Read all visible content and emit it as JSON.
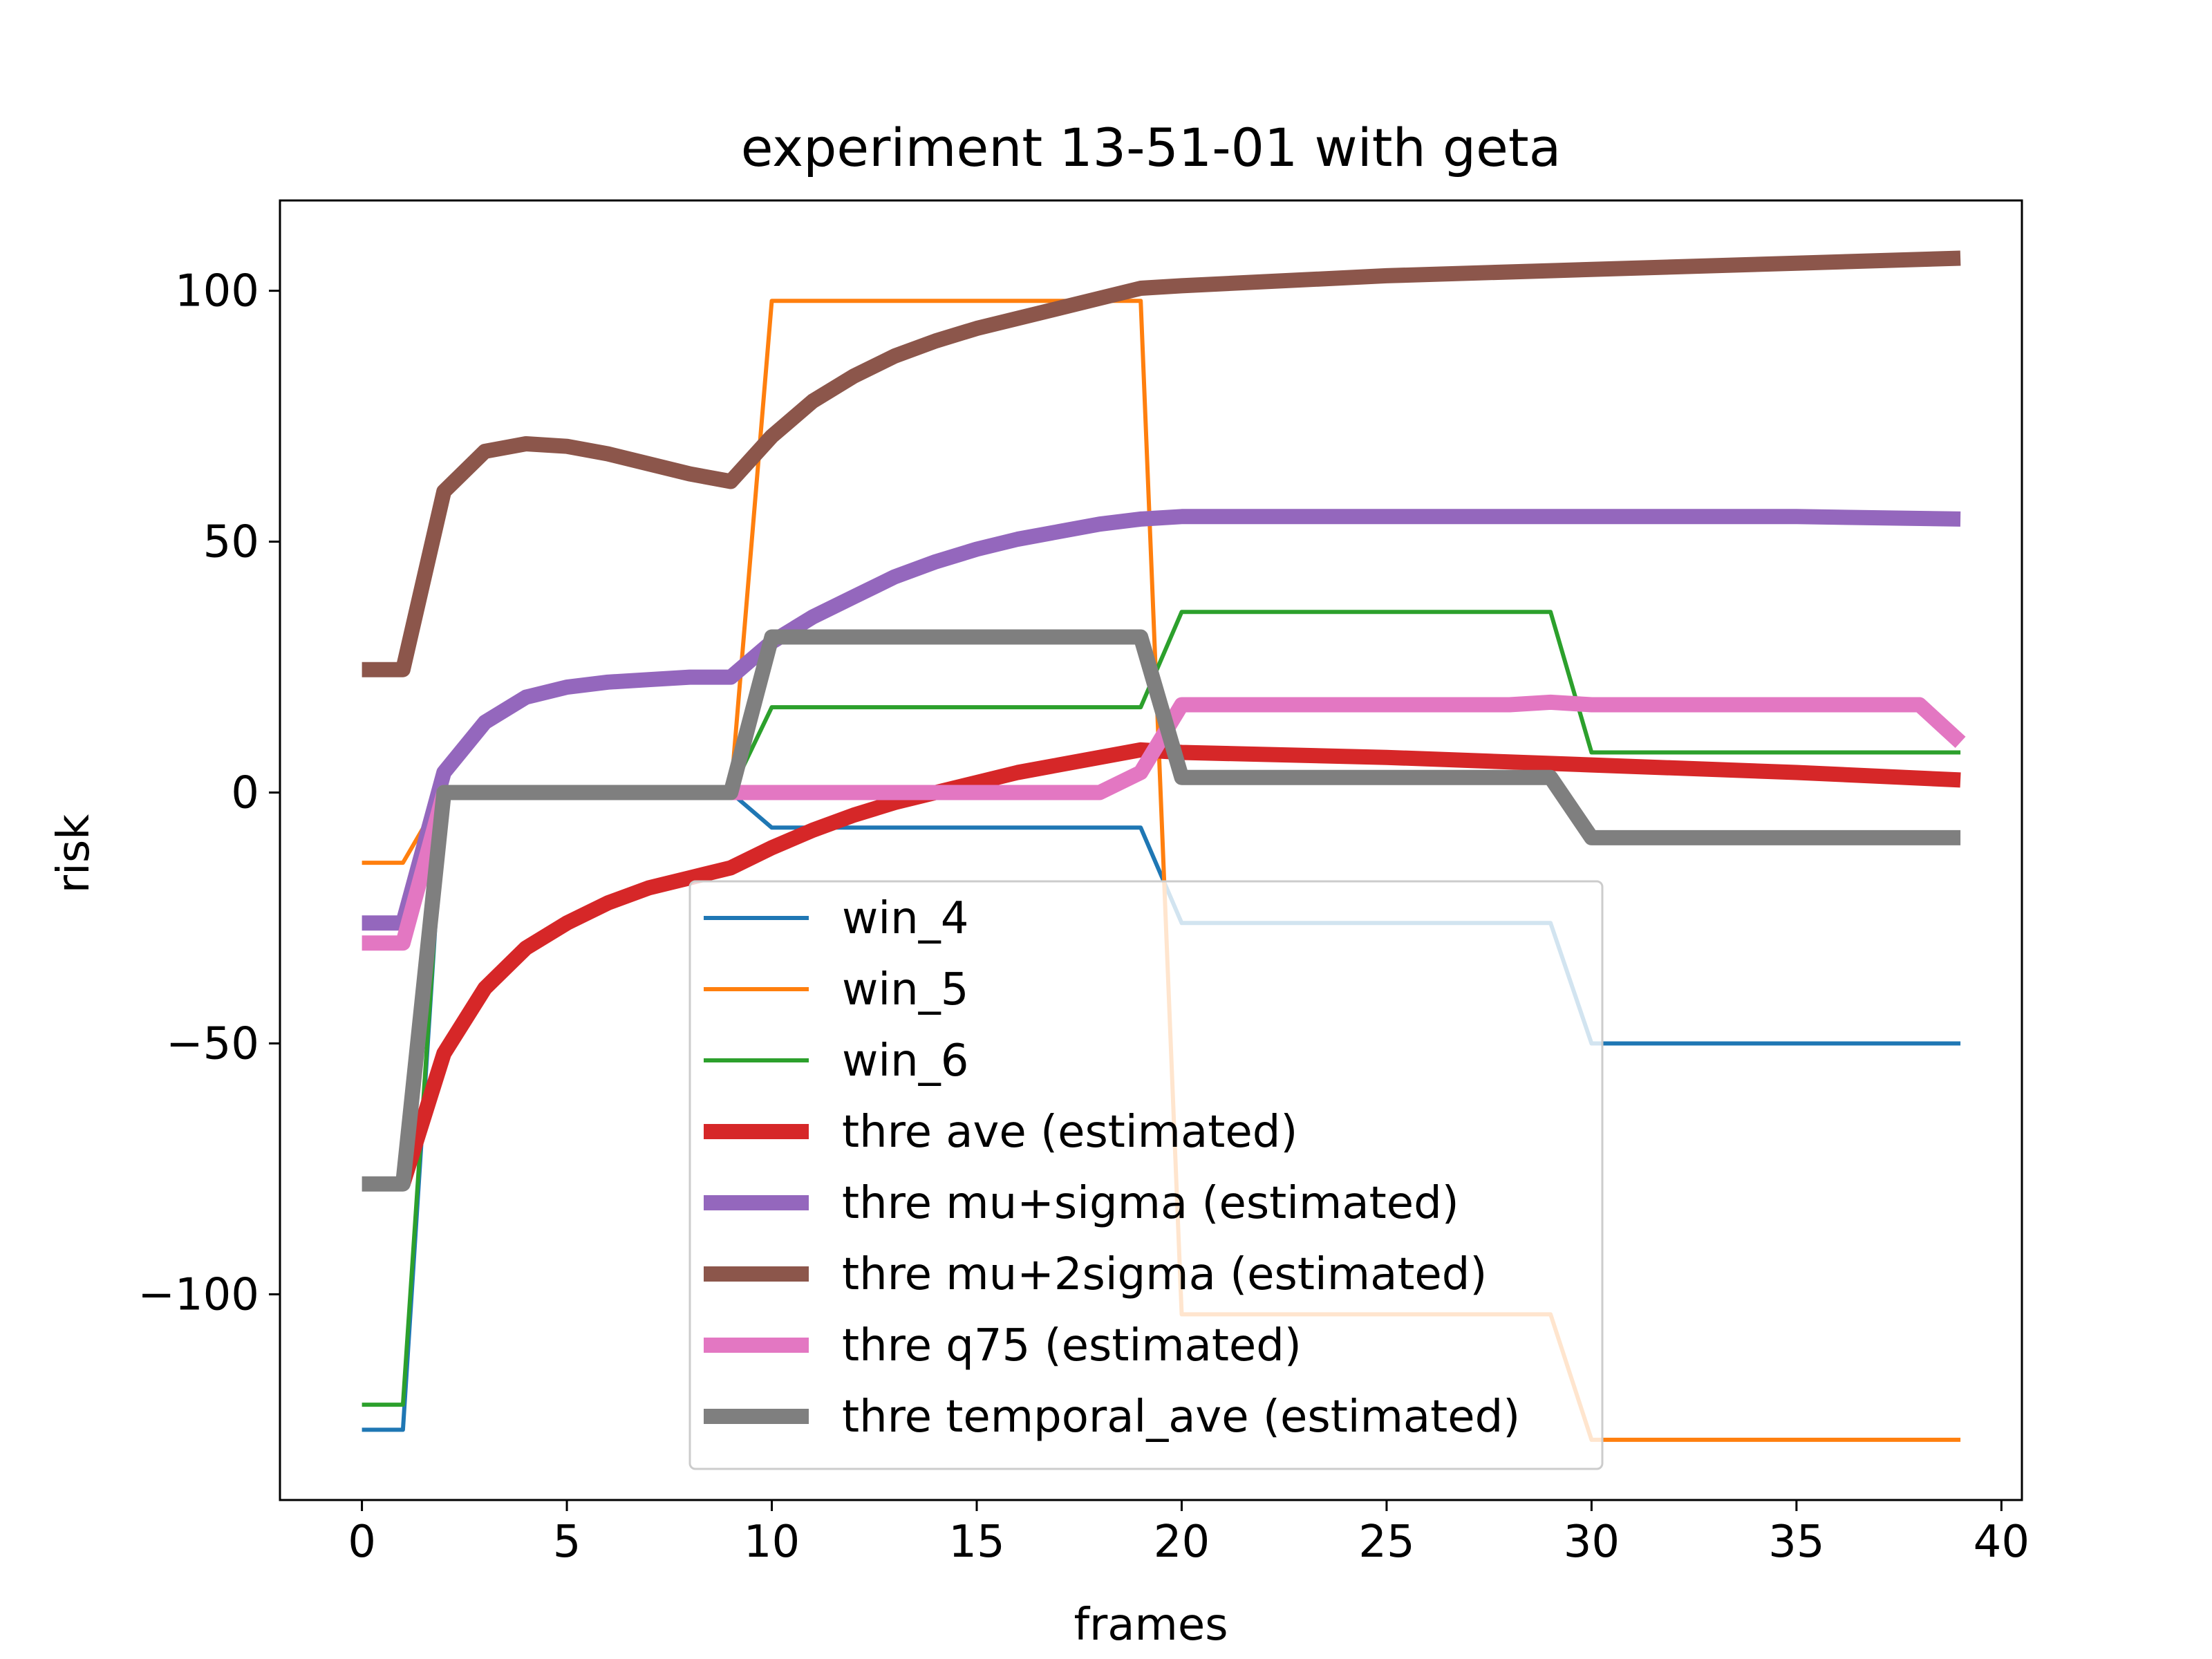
{
  "chart_data": {
    "type": "line",
    "title": "experiment 13-51-01 with geta",
    "xlabel": "frames",
    "ylabel": "risk",
    "xlim": [
      -2,
      40.5
    ],
    "ylim": [
      -141,
      118
    ],
    "xticks": [
      0,
      5,
      10,
      15,
      20,
      25,
      30,
      35,
      40
    ],
    "yticks": [
      100,
      50,
      0,
      -50,
      -100
    ],
    "ytick_labels": [
      "100",
      "50",
      "0",
      "−50",
      "−100"
    ],
    "grid": false,
    "legend_position": "lower center",
    "series": [
      {
        "name": "win_4",
        "color": "#1f77b4",
        "style": "thin",
        "x": [
          0,
          1,
          2,
          9,
          10,
          19,
          20,
          29,
          30,
          39
        ],
        "y": [
          -127,
          -127,
          0,
          0,
          -7,
          -7,
          -26,
          -26,
          -50,
          -50
        ]
      },
      {
        "name": "win_5",
        "color": "#ff7f0e",
        "style": "thin",
        "x": [
          0,
          1,
          2,
          9,
          10,
          19,
          20,
          29,
          30,
          39
        ],
        "y": [
          -14,
          -14,
          0,
          0,
          98,
          98,
          -104,
          -104,
          -129,
          -129
        ]
      },
      {
        "name": "win_6",
        "color": "#2ca02c",
        "style": "thin",
        "x": [
          0,
          1,
          2,
          9,
          10,
          19,
          20,
          29,
          30,
          39
        ],
        "y": [
          -122,
          -122,
          0,
          0,
          17,
          17,
          36,
          36,
          8,
          8
        ]
      },
      {
        "name": "thre ave (estimated)",
        "color": "#d62728",
        "style": "thick",
        "x": [
          1,
          2,
          3,
          4,
          5,
          6,
          7,
          8,
          9,
          10,
          11,
          12,
          13,
          14,
          15,
          16,
          17,
          18,
          19,
          20,
          25,
          30,
          35,
          39
        ],
        "y": [
          -78,
          -52,
          -39,
          -31,
          -26,
          -22,
          -19,
          -17,
          -15,
          -11,
          -7.5,
          -4.5,
          -2,
          0,
          2,
          4,
          5.5,
          7,
          8.5,
          8,
          7,
          5.5,
          4,
          2.5
        ]
      },
      {
        "name": "thre mu+sigma (estimated)",
        "color": "#9467bd",
        "style": "thick",
        "x": [
          0,
          1,
          2,
          3,
          4,
          5,
          6,
          7,
          8,
          9,
          10,
          11,
          12,
          13,
          14,
          15,
          16,
          17,
          18,
          19,
          20,
          25,
          29,
          35,
          39
        ],
        "y": [
          -26,
          -26,
          4,
          14,
          19,
          21,
          22,
          22.5,
          23,
          23,
          30,
          35,
          39,
          43,
          46,
          48.5,
          50.5,
          52,
          53.5,
          54.5,
          55,
          55,
          55,
          55,
          54.5
        ]
      },
      {
        "name": "thre mu+2sigma (estimated)",
        "color": "#8c564b",
        "style": "thick",
        "x": [
          0,
          1,
          2,
          3,
          4,
          5,
          6,
          7,
          8,
          9,
          10,
          11,
          12,
          13,
          14,
          15,
          16,
          17,
          18,
          19,
          20,
          25,
          29,
          35,
          39
        ],
        "y": [
          24.5,
          24.5,
          60,
          68,
          69.5,
          69,
          67.5,
          65.5,
          63.5,
          62,
          71,
          78,
          83,
          87,
          90,
          92.5,
          94.5,
          96.5,
          98.5,
          100.5,
          101,
          103,
          104,
          105.5,
          106.5
        ]
      },
      {
        "name": "thre q75 (estimated)",
        "color": "#e377c2",
        "style": "thick",
        "x": [
          0,
          1,
          2,
          9,
          18,
          19,
          20,
          28,
          29,
          30,
          38,
          39
        ],
        "y": [
          -30,
          -30,
          0,
          0,
          0,
          4,
          17.5,
          17.5,
          18,
          17.5,
          17.5,
          10
        ]
      },
      {
        "name": "thre temporal_ave (estimated)",
        "color": "#7f7f7f",
        "style": "thick",
        "x": [
          0,
          1,
          2,
          9,
          10,
          19,
          20,
          29,
          30,
          39
        ],
        "y": [
          -78,
          -78,
          0,
          0,
          31,
          31,
          3,
          3,
          -9,
          -9
        ]
      }
    ]
  }
}
